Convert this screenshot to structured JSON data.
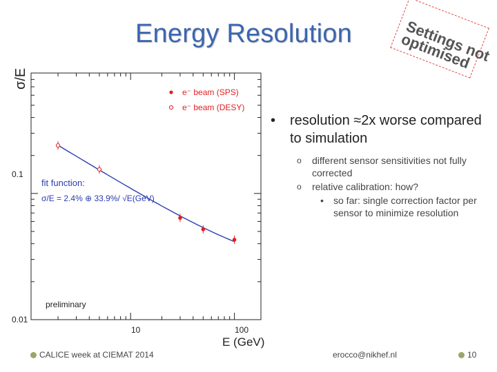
{
  "slide": {
    "title": "Energy Resolution",
    "stamp": "Settings not\noptimised",
    "bullet_main": "resolution ≈2x worse compared to simulation",
    "sub_bullets": [
      "different sensor sensitivities not fully corrected",
      "relative calibration: how?"
    ],
    "subsub_bullet": "so far: single correction factor per sensor to minimize resolution",
    "footer_left": "CALICE week at CIEMAT 2014",
    "footer_center": "erocco@nikhef.nl",
    "page_number": "10",
    "footer_dot_color": "#9aa56a"
  },
  "chart_data": {
    "type": "scatter",
    "xlabel": "E (GeV)",
    "ylabel": "σ/E",
    "xscale": "log",
    "yscale": "log",
    "xlim": [
      1.1,
      180
    ],
    "ylim": [
      0.01,
      0.9
    ],
    "x_ticks": [
      10,
      100
    ],
    "y_ticks": [
      0.01,
      0.1
    ],
    "y_tick_labels": [
      "0.01",
      "0.1"
    ],
    "x_tick_labels": [
      "10",
      "100"
    ],
    "legend_position": "top-right",
    "series": [
      {
        "name": "e⁻ beam (SPS)",
        "marker": "filled-circle",
        "color": "#e02020",
        "x": [
          30,
          50,
          100
        ],
        "y": [
          0.064,
          0.052,
          0.043
        ]
      },
      {
        "name": "e⁻ beam (DESY)",
        "marker": "open-circle",
        "color": "#e02020",
        "x": [
          2,
          5
        ],
        "y": [
          0.24,
          0.155
        ]
      }
    ],
    "fit_curve": {
      "color": "#2a3cb0",
      "x_from": 2,
      "x_to": 100,
      "stochastic": 0.339,
      "constant": 0.024
    },
    "annotations": {
      "fit_title": "fit function:",
      "fit_formula": "σ/E = 2.4% ⊕ 33.9%/ √E(GeV)",
      "preliminary": "preliminary"
    },
    "annotation_color": "#2a3cb0"
  }
}
